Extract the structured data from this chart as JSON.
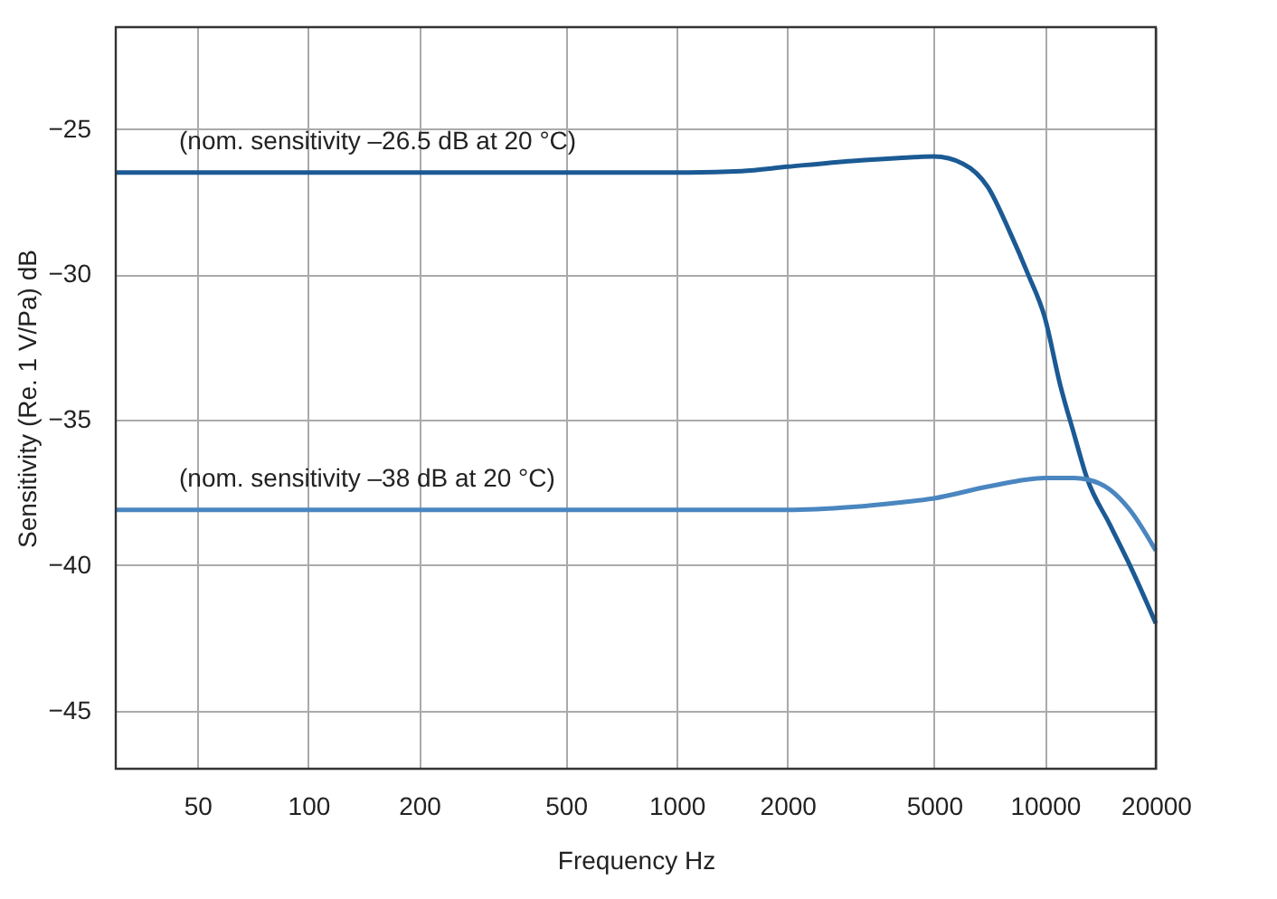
{
  "chart_data": {
    "type": "line",
    "xlabel": "Frequency Hz",
    "ylabel": "Sensitivity (Re. 1 V/Pa) dB",
    "log": "x",
    "grid": true,
    "line_style": "solid",
    "marker": "none",
    "xlim": [
      30,
      20000
    ],
    "xticks": [
      50,
      100,
      200,
      500,
      1000,
      2000,
      5000,
      10000,
      20000
    ],
    "ylim": [
      -47,
      -21.5
    ],
    "yticks": [
      -25,
      -30,
      -35,
      -40,
      -45
    ],
    "series": [
      {
        "name": "(nom. sensitivity –26.5 dB at 20 °C)",
        "color": "#1b5a94",
        "x": [
          30,
          100,
          500,
          1000,
          1500,
          2000,
          3000,
          4000,
          5000,
          6000,
          7000,
          8000,
          9000,
          10000,
          11000,
          12000,
          13000,
          15000,
          17000,
          20000
        ],
        "values": [
          -26.5,
          -26.5,
          -26.5,
          -26.5,
          -26.45,
          -26.3,
          -26.1,
          -26.0,
          -25.95,
          -26.2,
          -27.0,
          -28.5,
          -30.0,
          -31.5,
          -33.8,
          -35.5,
          -37.0,
          -38.6,
          -40.0,
          -42.0
        ]
      },
      {
        "name": "(nom. sensitivity –38 dB at 20 °C)",
        "color": "#4a86c0",
        "x": [
          30,
          100,
          500,
          1000,
          2000,
          3000,
          4000,
          5000,
          7000,
          10000,
          12000,
          13000,
          15000,
          17000,
          20000
        ],
        "values": [
          -38.1,
          -38.1,
          -38.1,
          -38.1,
          -38.1,
          -38.0,
          -37.85,
          -37.7,
          -37.3,
          -37.0,
          -37.0,
          -37.05,
          -37.4,
          -38.1,
          -39.5
        ]
      }
    ]
  }
}
